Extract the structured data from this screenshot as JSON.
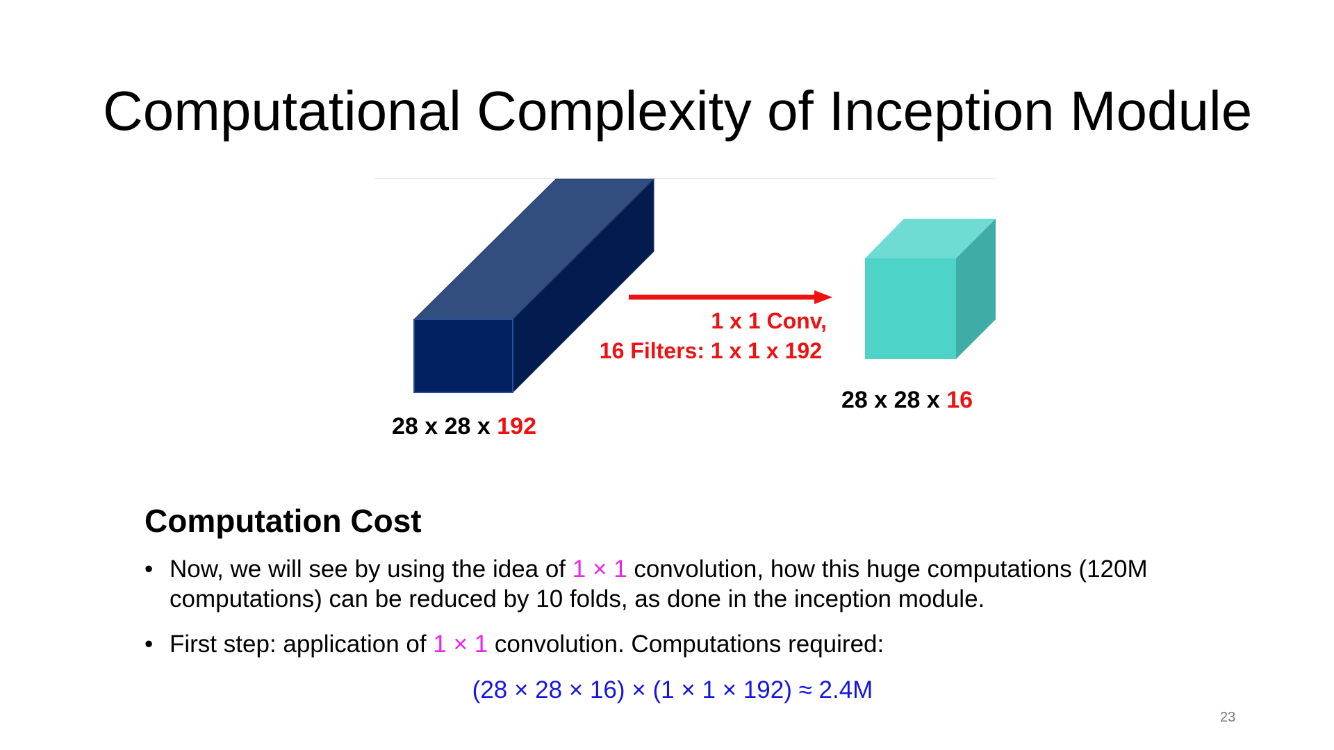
{
  "slide": {
    "title": "Computational Complexity of Inception Module",
    "page_number": "23"
  },
  "figure": {
    "input_volume": {
      "label_prefix": "28 x 28 x ",
      "label_depth": "192",
      "colors": {
        "front": "#00205f",
        "top": "#324e7e",
        "side": "#021c4f"
      }
    },
    "operation": {
      "line1": "1 x 1 Conv,",
      "line2": "16 Filters:  1 x 1 x 192",
      "arrow_color": "#ee1111"
    },
    "output_volume": {
      "label_prefix": "28 x 28 x ",
      "label_depth": "16",
      "colors": {
        "front": "#4dd3c8",
        "top": "#6fdcd3",
        "side": "#3fada5"
      }
    }
  },
  "content": {
    "heading": "Computation Cost",
    "bullet_symbol": "•",
    "bullets": [
      {
        "before": "Now, we will see by using the idea of ",
        "highlight": "1 × 1",
        "after": " convolution, how this huge computations (120M computations) can be reduced by 10 folds, as done in the inception module."
      },
      {
        "before": "First step: application of ",
        "highlight": "1 × 1",
        "after": " convolution. Computations required:"
      }
    ],
    "formula": "(28 × 28 × 16) × (1 × 1 × 192) ≈ 2.4M"
  },
  "colors": {
    "highlight": "#ee22ee",
    "formula": "#1515e0",
    "depth_label": "#ee1111"
  }
}
